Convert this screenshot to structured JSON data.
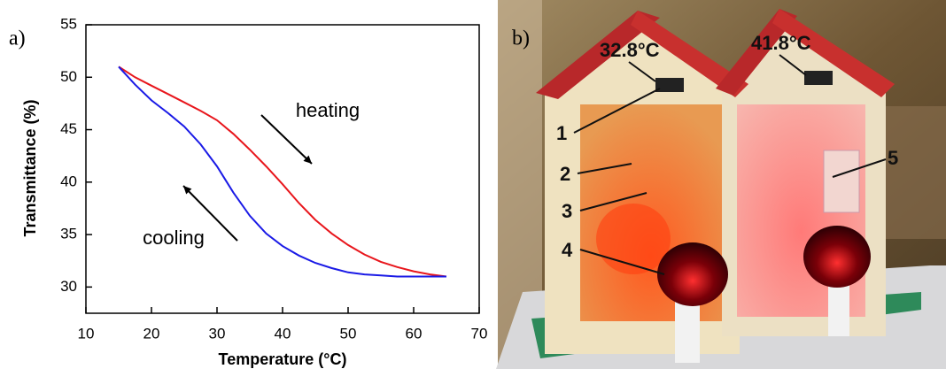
{
  "chart_data": {
    "type": "line",
    "panel_label": "a)",
    "x_label": "Temperature (°C)",
    "y_label": "Transmittance (%)",
    "x": [
      15,
      17.5,
      20,
      22.5,
      25,
      27.5,
      30,
      32.5,
      35,
      37.5,
      40,
      42.5,
      45,
      47.5,
      50,
      52.5,
      55,
      57.5,
      60,
      62.5,
      65
    ],
    "series": [
      {
        "name": "heating",
        "color": "#e8161c",
        "values": [
          51,
          50,
          49.2,
          48.4,
          47.6,
          46.8,
          45.9,
          44.6,
          43.1,
          41.5,
          39.8,
          38,
          36.4,
          35.1,
          34,
          33.1,
          32.4,
          31.9,
          31.5,
          31.2,
          31
        ]
      },
      {
        "name": "cooling",
        "color": "#1a1ae6",
        "values": [
          51,
          49.3,
          47.8,
          46.6,
          45.3,
          43.6,
          41.5,
          39,
          36.8,
          35.1,
          33.9,
          33,
          32.3,
          31.8,
          31.4,
          31.2,
          31.1,
          31,
          31,
          31,
          31
        ]
      }
    ],
    "xlim": [
      10,
      70
    ],
    "xticks": [
      10,
      20,
      30,
      40,
      50,
      60,
      70
    ],
    "ylim": [
      27.5,
      55
    ],
    "yticks": [
      30,
      35,
      40,
      45,
      50,
      55
    ],
    "grid": false
  },
  "photo": {
    "panel_label": "b)",
    "readings": [
      "32.8°C",
      "41.8°C"
    ],
    "markers": [
      "1",
      "2",
      "3",
      "4",
      "5"
    ]
  }
}
